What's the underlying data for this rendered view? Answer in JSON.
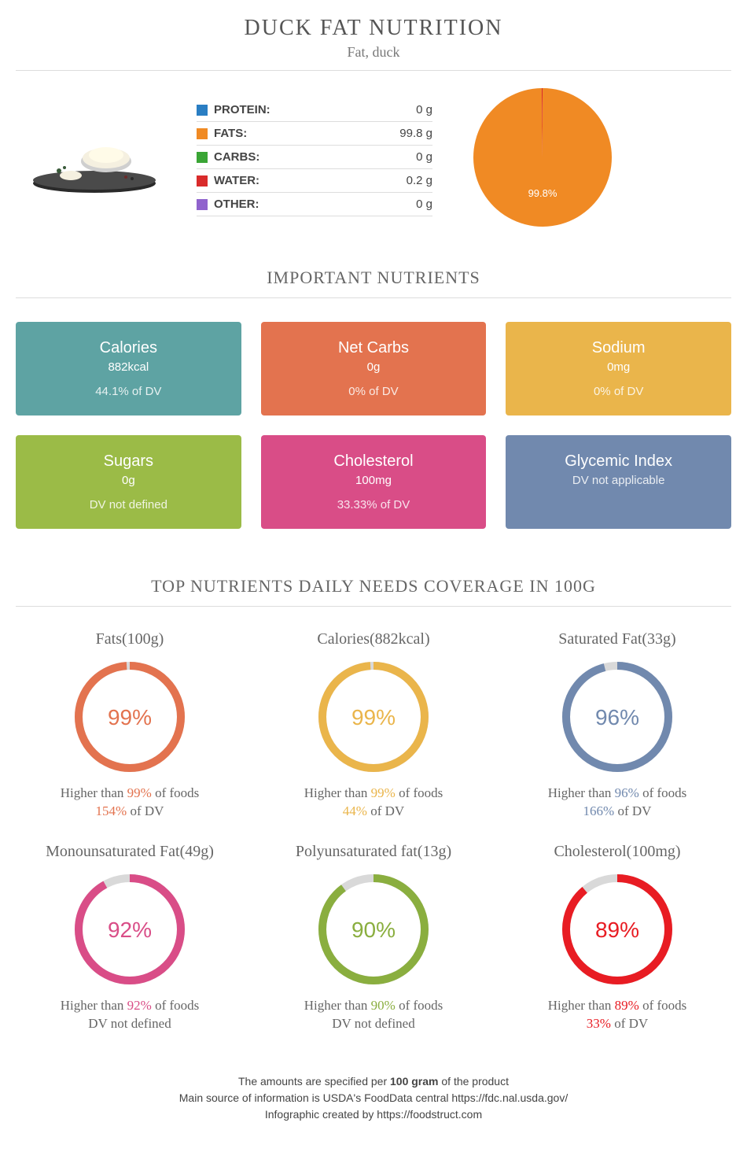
{
  "title": "DUCK FAT NUTRITION",
  "subtitle": "Fat, duck",
  "macros": [
    {
      "label": "PROTEIN:",
      "value": "0 g",
      "color": "#2a7ec3"
    },
    {
      "label": "FATS:",
      "value": "99.8 g",
      "color": "#f08a24"
    },
    {
      "label": "CARBS:",
      "value": "0 g",
      "color": "#3aa535"
    },
    {
      "label": "WATER:",
      "value": "0.2 g",
      "color": "#d92b2b"
    },
    {
      "label": "OTHER:",
      "value": "0 g",
      "color": "#9063cd"
    }
  ],
  "pie": {
    "slices": [
      {
        "pct": 99.8,
        "color": "#f08a24",
        "label": "99.8%"
      },
      {
        "pct": 0.2,
        "color": "#d92b2b",
        "label": ""
      }
    ],
    "label_color": "#ffffff",
    "label_fontsize": 13
  },
  "section_important": "IMPORTANT NUTRIENTS",
  "cards": [
    {
      "title": "Calories",
      "value": "882kcal",
      "dv": "44.1% of DV",
      "bg": "#5ea3a3"
    },
    {
      "title": "Net Carbs",
      "value": "0g",
      "dv": "0% of DV",
      "bg": "#e3734f"
    },
    {
      "title": "Sodium",
      "value": "0mg",
      "dv": "0% of DV",
      "bg": "#eab54b"
    },
    {
      "title": "Sugars",
      "value": "0g",
      "dv": "DV not defined",
      "bg": "#9bbb47"
    },
    {
      "title": "Cholesterol",
      "value": "100mg",
      "dv": "33.33% of DV",
      "bg": "#d94d87"
    },
    {
      "title": "Glycemic Index",
      "value": "",
      "dv": "DV not applicable",
      "bg": "#7189ae",
      "short": true
    }
  ],
  "section_gauges": "TOP NUTRIENTS DAILY NEEDS COVERAGE IN 100G",
  "gauges": [
    {
      "title": "Fats(100g)",
      "pct": 99,
      "color": "#e3734f",
      "caption_pre": "Higher than ",
      "caption_hl": "99%",
      "caption_post": " of foods",
      "dv_pre": "",
      "dv_hl": "154%",
      "dv_post": " of DV"
    },
    {
      "title": "Calories(882kcal)",
      "pct": 99,
      "color": "#eab54b",
      "caption_pre": "Higher than ",
      "caption_hl": "99%",
      "caption_post": " of foods",
      "dv_pre": "",
      "dv_hl": "44%",
      "dv_post": " of DV"
    },
    {
      "title": "Saturated Fat(33g)",
      "pct": 96,
      "color": "#7189ae",
      "caption_pre": "Higher than ",
      "caption_hl": "96%",
      "caption_post": " of foods",
      "dv_pre": "",
      "dv_hl": "166%",
      "dv_post": " of DV"
    },
    {
      "title": "Monounsaturated Fat(49g)",
      "pct": 92,
      "color": "#d94d87",
      "caption_pre": "Higher than ",
      "caption_hl": "92%",
      "caption_post": " of foods",
      "dv_pre": "DV not defined",
      "dv_hl": "",
      "dv_post": ""
    },
    {
      "title": "Polyunsaturated fat(13g)",
      "pct": 90,
      "color": "#8aae3f",
      "caption_pre": "Higher than ",
      "caption_hl": "90%",
      "caption_post": " of foods",
      "dv_pre": "DV not defined",
      "dv_hl": "",
      "dv_post": ""
    },
    {
      "title": "Cholesterol(100mg)",
      "pct": 89,
      "color": "#e81c23",
      "caption_pre": "Higher than ",
      "caption_hl": "89%",
      "caption_post": " of foods",
      "dv_pre": "",
      "dv_hl": "33%",
      "dv_post": " of DV"
    }
  ],
  "gauge_track_color": "#d9d9d9",
  "gauge_stroke_width": 10,
  "footer": {
    "line1_pre": "The amounts are specified per ",
    "line1_bold": "100 gram",
    "line1_post": " of the product",
    "line2": "Main source of information is USDA's FoodData central https://fdc.nal.usda.gov/",
    "line3": "Infographic created by https://foodstruct.com"
  }
}
